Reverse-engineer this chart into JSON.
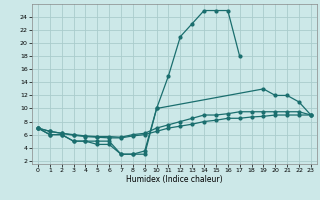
{
  "bg_color": "#cce8e8",
  "grid_color": "#aacccc",
  "line_color": "#1a6e6e",
  "xlabel": "Humidex (Indice chaleur)",
  "xlim": [
    -0.5,
    23.5
  ],
  "ylim": [
    1.5,
    26
  ],
  "xticks": [
    0,
    1,
    2,
    3,
    4,
    5,
    6,
    7,
    8,
    9,
    10,
    11,
    12,
    13,
    14,
    15,
    16,
    17,
    18,
    19,
    20,
    21,
    22,
    23
  ],
  "yticks": [
    2,
    4,
    6,
    8,
    10,
    12,
    14,
    16,
    18,
    20,
    22,
    24
  ],
  "series": [
    {
      "x": [
        0,
        1,
        2,
        3,
        4,
        5,
        6,
        7,
        8,
        9,
        10,
        11,
        12,
        13,
        14,
        15,
        16,
        17
      ],
      "y": [
        7,
        6,
        6,
        5,
        5,
        5,
        5,
        3,
        3,
        3,
        10,
        15,
        21,
        23,
        25,
        25,
        25,
        18
      ]
    },
    {
      "x": [
        0,
        1,
        2,
        3,
        4,
        5,
        6,
        7,
        8,
        9,
        10,
        19,
        20,
        21,
        22,
        23
      ],
      "y": [
        7,
        6,
        6,
        5,
        5,
        4.5,
        4.5,
        3,
        3,
        3.5,
        10,
        13,
        12,
        12,
        11,
        9
      ]
    },
    {
      "x": [
        0,
        1,
        2,
        3,
        4,
        5,
        6,
        7,
        8,
        9,
        10,
        11,
        12,
        13,
        14,
        15,
        16,
        17,
        18,
        19,
        20,
        21,
        22,
        23
      ],
      "y": [
        7,
        6.5,
        6.2,
        6.0,
        5.8,
        5.7,
        5.7,
        5.6,
        6.0,
        6.2,
        7,
        7.5,
        8,
        8.5,
        9,
        9,
        9.2,
        9.5,
        9.5,
        9.5,
        9.5,
        9.5,
        9.5,
        9
      ]
    },
    {
      "x": [
        0,
        1,
        2,
        3,
        4,
        5,
        6,
        7,
        8,
        9,
        10,
        11,
        12,
        13,
        14,
        15,
        16,
        17,
        18,
        19,
        20,
        21,
        22,
        23
      ],
      "y": [
        7,
        6.5,
        6.2,
        5.9,
        5.7,
        5.6,
        5.5,
        5.5,
        5.8,
        6.0,
        6.5,
        7,
        7.3,
        7.6,
        8,
        8.2,
        8.5,
        8.5,
        8.7,
        8.8,
        9,
        9,
        9,
        9
      ]
    }
  ]
}
